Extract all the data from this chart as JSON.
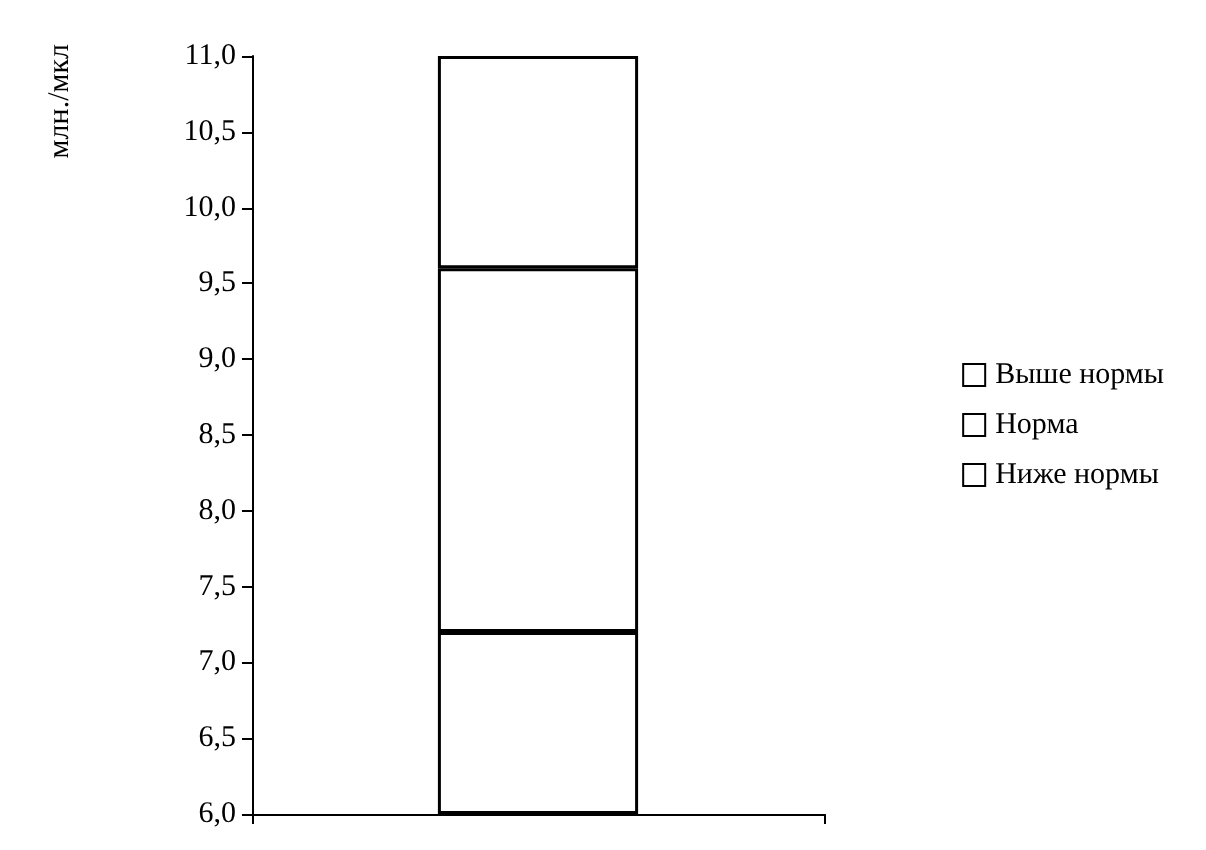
{
  "chart_data": {
    "type": "bar",
    "ylabel": "млн./мкл",
    "categories": [
      null
    ],
    "series": [
      {
        "name": "Ниже нормы",
        "color": "#ffffff",
        "base": [
          6
        ],
        "values": [
          1.2
        ]
      },
      {
        "name": "Норма",
        "color": "#ffffff",
        "base": [
          7.2
        ],
        "values": [
          2.4
        ]
      },
      {
        "name": "Выше нормы",
        "color": "#ffffff",
        "base": [
          9.6
        ],
        "values": [
          1.4
        ]
      }
    ],
    "ylim": [
      6,
      11
    ],
    "yticks": [
      {
        "value": 6,
        "label": "6,0"
      },
      {
        "value": 6.5,
        "label": "6,5"
      },
      {
        "value": 7,
        "label": "7,0"
      },
      {
        "value": 7.5,
        "label": "7,5"
      },
      {
        "value": 8,
        "label": "8,0"
      },
      {
        "value": 8.5,
        "label": "8,5"
      },
      {
        "value": 9,
        "label": "9,0"
      },
      {
        "value": 9.5,
        "label": "9,5"
      },
      {
        "value": 10,
        "label": "10,0"
      },
      {
        "value": 10.5,
        "label": "10,5"
      },
      {
        "value": 11,
        "label": "11,0"
      }
    ],
    "grid": false,
    "legend": "right"
  }
}
